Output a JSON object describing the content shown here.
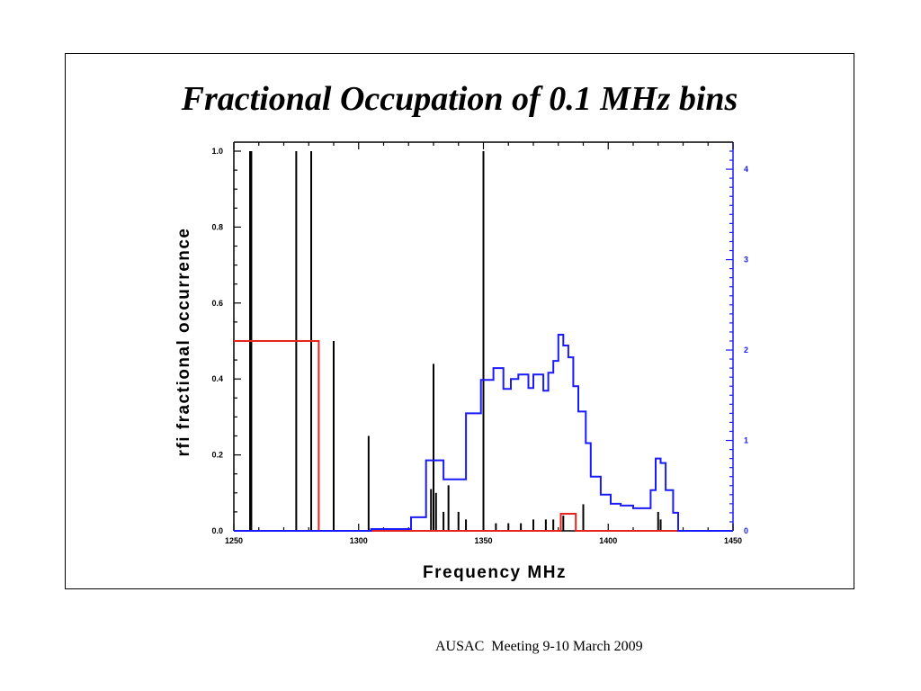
{
  "slide": {
    "title": "Fractional Occupation of 0.1 MHz bins",
    "footer": "AUSAC  Meeting 9-10 March 2009"
  },
  "chart_data": {
    "type": "line",
    "title": "Fractional Occupation of 0.1 MHz bins",
    "xlabel": "Frequency  MHz",
    "ylabel": "rfi fractional occurrence",
    "xlim": [
      1250,
      1450
    ],
    "ylim": [
      0,
      1.0
    ],
    "y2lim": [
      0,
      4.2
    ],
    "xticks": [
      "1250",
      "1300",
      "1350",
      "1400",
      "1450"
    ],
    "yticks": [
      "0.0",
      "0.2",
      "0.4",
      "0.6",
      "0.8",
      "1.0"
    ],
    "y2ticks": [
      "0",
      "1",
      "2",
      "3",
      "4"
    ],
    "grid": false,
    "colors": {
      "black": "#000000",
      "red": "#e8231e",
      "blue": "#1a1aff"
    },
    "spikes": {
      "color": "#000000",
      "x": [
        1256.5,
        1257,
        1275,
        1281,
        1290,
        1304,
        1329,
        1330,
        1331,
        1334,
        1336,
        1340,
        1343,
        1350,
        1355,
        1360,
        1365,
        1370,
        1375,
        1378,
        1382,
        1390,
        1420,
        1421
      ],
      "y": [
        1.0,
        1.0,
        1.0,
        1.0,
        0.5,
        0.25,
        0.11,
        0.44,
        0.1,
        0.05,
        0.12,
        0.05,
        0.03,
        1.0,
        0.02,
        0.02,
        0.02,
        0.03,
        0.03,
        0.03,
        0.04,
        0.07,
        0.05,
        0.03
      ]
    },
    "series": [
      {
        "axis": "left",
        "color": "#e8231e",
        "x": [
          1250,
          1284,
          1284,
          1381,
          1381,
          1387,
          1387,
          1450
        ],
        "y": [
          0.5,
          0.5,
          0.0,
          0.0,
          0.045,
          0.045,
          0.0,
          0.0
        ]
      },
      {
        "axis": "right",
        "color": "#1a1aff",
        "x": [
          1250,
          1305,
          1305,
          1321,
          1321,
          1327,
          1327,
          1334,
          1334,
          1343,
          1343,
          1349,
          1349,
          1354,
          1354,
          1358,
          1358,
          1361,
          1361,
          1364,
          1364,
          1368,
          1368,
          1370,
          1370,
          1374,
          1374,
          1376,
          1376,
          1378,
          1378,
          1380,
          1380,
          1382,
          1382,
          1384,
          1384,
          1386,
          1386,
          1388,
          1388,
          1391,
          1391,
          1393,
          1393,
          1397,
          1397,
          1401,
          1401,
          1405,
          1405,
          1410,
          1410,
          1417,
          1417,
          1419,
          1419,
          1421,
          1421,
          1423,
          1423,
          1426,
          1426,
          1428,
          1428,
          1450
        ],
        "y": [
          0.0,
          0.0,
          0.02,
          0.02,
          0.15,
          0.15,
          0.78,
          0.78,
          0.57,
          0.57,
          1.3,
          1.3,
          1.67,
          1.67,
          1.8,
          1.8,
          1.57,
          1.57,
          1.68,
          1.68,
          1.73,
          1.73,
          1.58,
          1.58,
          1.73,
          1.73,
          1.55,
          1.55,
          1.75,
          1.75,
          1.88,
          1.88,
          2.17,
          2.17,
          2.05,
          2.05,
          1.92,
          1.92,
          1.6,
          1.6,
          1.32,
          1.32,
          0.97,
          0.97,
          0.6,
          0.6,
          0.4,
          0.4,
          0.3,
          0.3,
          0.28,
          0.28,
          0.25,
          0.25,
          0.45,
          0.45,
          0.8,
          0.8,
          0.75,
          0.75,
          0.45,
          0.45,
          0.2,
          0.2,
          0.0,
          0.0
        ]
      }
    ]
  }
}
